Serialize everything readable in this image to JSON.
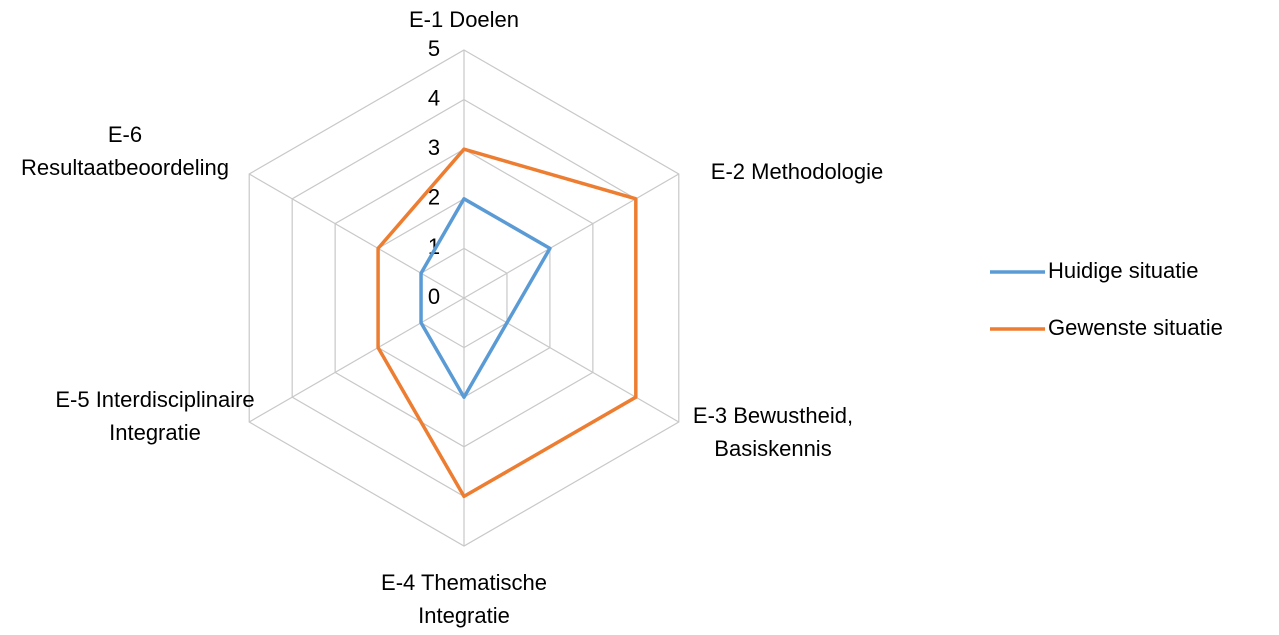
{
  "chart_data": {
    "type": "radar",
    "categories": [
      "E-1 Doelen",
      "E-2 Methodologie",
      "E-3 Bewustheid, Basiskennis",
      "E-4 Thematische Integratie",
      "E-5 Interdisciplinaire Integratie",
      "E-6 Resultaatbeoordeling"
    ],
    "series": [
      {
        "name": "Huidige situatie",
        "color": "#5b9bd5",
        "values": [
          2,
          2,
          1,
          2,
          1,
          1
        ]
      },
      {
        "name": "Gewenste situatie",
        "color": "#ed7d31",
        "values": [
          3,
          4,
          4,
          4,
          2,
          2
        ]
      }
    ],
    "ylim": [
      0,
      5
    ],
    "yticks": [
      0,
      1,
      2,
      3,
      4,
      5
    ],
    "grid": true,
    "legend": "right"
  }
}
